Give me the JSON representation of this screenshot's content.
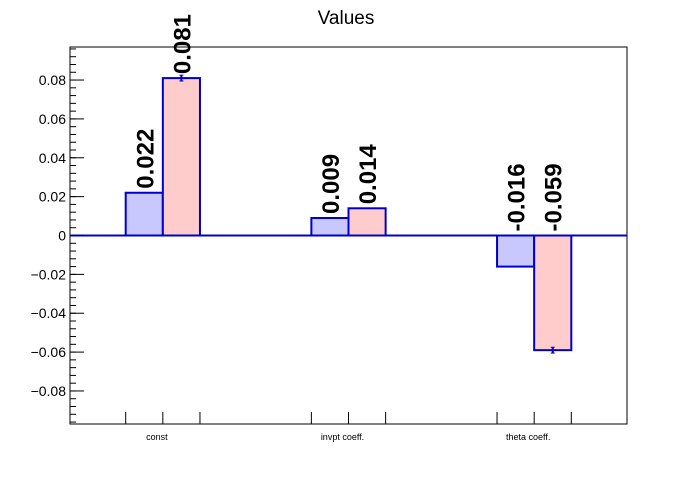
{
  "chart_data": {
    "type": "bar",
    "title": "Values",
    "xlabel": "",
    "ylabel": "",
    "categories": [
      "const",
      "invpt coeff.",
      "theta coeff."
    ],
    "ylim": [
      -0.097,
      0.097
    ],
    "yticks": [
      -0.08,
      -0.06,
      -0.04,
      -0.02,
      0,
      0.02,
      0.04,
      0.06,
      0.08
    ],
    "ytick_labels": [
      "−0.08",
      "−0.06",
      "−0.04",
      "−0.02",
      "0",
      "0.02",
      "0.04",
      "0.06",
      "0.08"
    ],
    "grid": false,
    "legend": "none",
    "series": [
      {
        "values": [
          0.022,
          0.009,
          -0.016
        ],
        "errors": [
          0.0,
          0.0,
          0.0
        ],
        "labels": [
          "0.022",
          "0.009",
          "-0.016"
        ],
        "fill": "#c8c8ff",
        "stroke": "#0000cc"
      },
      {
        "values": [
          0.081,
          0.014,
          -0.059
        ],
        "errors": [
          0.0015,
          0.0,
          0.0015
        ],
        "labels": [
          "0.081",
          "0.014",
          "-0.059"
        ],
        "fill": "#ffcccc",
        "stroke": "#0000cc"
      }
    ],
    "colors": {
      "axis": "#000000",
      "zero_line": "#0000cc",
      "error_bar": "#0000cc"
    }
  }
}
